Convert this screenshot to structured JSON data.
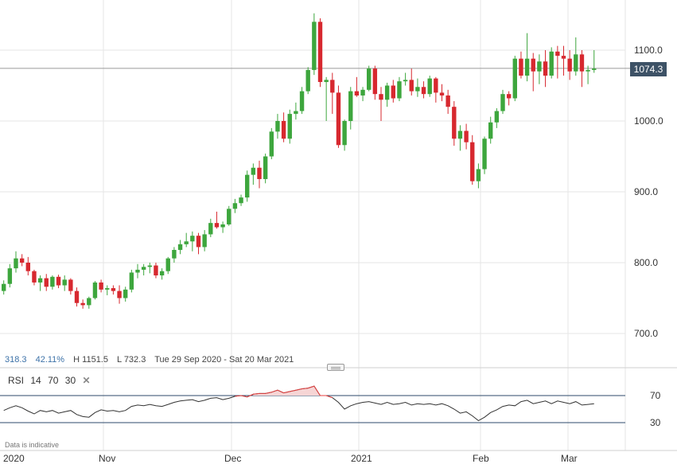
{
  "chart_data": {
    "type": "candlestick",
    "y_ticks": [
      "1100.0",
      "1000.0",
      "900.0",
      "800.0",
      "700.0"
    ],
    "y_tick_values": [
      1100,
      1000,
      900,
      800,
      700
    ],
    "ylim": [
      650,
      1170
    ],
    "x_labels": [
      "2020",
      "Nov",
      "Dec",
      "2021",
      "Feb",
      "Mar"
    ],
    "current_price": "1074.3",
    "current_value": 1074.3,
    "grid": true,
    "candles": [
      [
        760,
        775,
        755,
        770
      ],
      [
        770,
        798,
        765,
        792
      ],
      [
        792,
        816,
        786,
        806
      ],
      [
        806,
        812,
        795,
        800
      ],
      [
        800,
        808,
        782,
        788
      ],
      [
        788,
        790,
        768,
        772
      ],
      [
        772,
        782,
        760,
        778
      ],
      [
        778,
        784,
        760,
        766
      ],
      [
        766,
        782,
        762,
        780
      ],
      [
        780,
        783,
        764,
        768
      ],
      [
        768,
        782,
        760,
        776
      ],
      [
        776,
        778,
        755,
        760
      ],
      [
        760,
        765,
        738,
        743
      ],
      [
        743,
        748,
        735,
        740
      ],
      [
        740,
        752,
        735,
        750
      ],
      [
        750,
        774,
        748,
        772
      ],
      [
        772,
        776,
        758,
        762
      ],
      [
        762,
        768,
        754,
        764
      ],
      [
        764,
        768,
        755,
        760
      ],
      [
        760,
        768,
        742,
        750
      ],
      [
        750,
        766,
        745,
        762
      ],
      [
        762,
        790,
        758,
        786
      ],
      [
        786,
        798,
        778,
        790
      ],
      [
        790,
        798,
        782,
        794
      ],
      [
        794,
        800,
        785,
        796
      ],
      [
        796,
        800,
        778,
        782
      ],
      [
        782,
        792,
        776,
        788
      ],
      [
        788,
        808,
        784,
        806
      ],
      [
        806,
        822,
        800,
        818
      ],
      [
        818,
        832,
        812,
        826
      ],
      [
        826,
        842,
        822,
        830
      ],
      [
        830,
        844,
        816,
        838
      ],
      [
        838,
        842,
        812,
        822
      ],
      [
        822,
        846,
        816,
        840
      ],
      [
        840,
        862,
        836,
        856
      ],
      [
        856,
        872,
        848,
        850
      ],
      [
        850,
        858,
        842,
        854
      ],
      [
        854,
        880,
        852,
        876
      ],
      [
        876,
        890,
        870,
        884
      ],
      [
        884,
        896,
        880,
        892
      ],
      [
        892,
        930,
        886,
        924
      ],
      [
        924,
        940,
        910,
        934
      ],
      [
        934,
        944,
        905,
        918
      ],
      [
        918,
        954,
        912,
        950
      ],
      [
        950,
        990,
        946,
        985
      ],
      [
        985,
        1010,
        975,
        1000
      ],
      [
        1000,
        1012,
        970,
        975
      ],
      [
        975,
        1016,
        968,
        1010
      ],
      [
        1010,
        1026,
        1002,
        1014
      ],
      [
        1014,
        1048,
        1010,
        1042
      ],
      [
        1042,
        1076,
        1038,
        1072
      ],
      [
        1072,
        1152,
        1065,
        1140
      ],
      [
        1140,
        1145,
        1048,
        1055
      ],
      [
        1055,
        1062,
        1000,
        1058
      ],
      [
        1058,
        1068,
        1010,
        1040
      ],
      [
        1040,
        1050,
        962,
        966
      ],
      [
        966,
        1002,
        958,
        1000
      ],
      [
        1000,
        1048,
        988,
        1042
      ],
      [
        1042,
        1062,
        1034,
        1036
      ],
      [
        1036,
        1048,
        1028,
        1044
      ],
      [
        1044,
        1078,
        1042,
        1074
      ],
      [
        1074,
        1078,
        1030,
        1038
      ],
      [
        1038,
        1048,
        1000,
        1030
      ],
      [
        1030,
        1054,
        1020,
        1050
      ],
      [
        1050,
        1058,
        1026,
        1032
      ],
      [
        1032,
        1062,
        1028,
        1056
      ],
      [
        1056,
        1068,
        1050,
        1058
      ],
      [
        1058,
        1074,
        1036,
        1042
      ],
      [
        1042,
        1060,
        1034,
        1048
      ],
      [
        1048,
        1056,
        1032,
        1038
      ],
      [
        1038,
        1064,
        1034,
        1060
      ],
      [
        1060,
        1062,
        1026,
        1040
      ],
      [
        1040,
        1052,
        1028,
        1036
      ],
      [
        1036,
        1044,
        1010,
        1020
      ],
      [
        1020,
        1028,
        965,
        975
      ],
      [
        975,
        994,
        958,
        986
      ],
      [
        986,
        996,
        960,
        970
      ],
      [
        970,
        980,
        910,
        915
      ],
      [
        915,
        940,
        905,
        932
      ],
      [
        932,
        978,
        925,
        975
      ],
      [
        975,
        1006,
        968,
        998
      ],
      [
        998,
        1018,
        990,
        1014
      ],
      [
        1014,
        1044,
        1010,
        1038
      ],
      [
        1038,
        1042,
        1022,
        1032
      ],
      [
        1032,
        1092,
        1028,
        1088
      ],
      [
        1088,
        1098,
        1060,
        1064
      ],
      [
        1064,
        1124,
        1056,
        1088
      ],
      [
        1088,
        1096,
        1042,
        1070
      ],
      [
        1070,
        1094,
        1052,
        1084
      ],
      [
        1084,
        1100,
        1048,
        1064
      ],
      [
        1064,
        1104,
        1060,
        1098
      ],
      [
        1098,
        1106,
        1060,
        1092
      ],
      [
        1092,
        1106,
        1064,
        1088
      ],
      [
        1088,
        1100,
        1058,
        1070
      ],
      [
        1070,
        1118,
        1064,
        1094
      ],
      [
        1094,
        1100,
        1048,
        1070
      ],
      [
        1070,
        1078,
        1052,
        1072
      ],
      [
        1072,
        1100,
        1068,
        1074
      ]
    ],
    "rsi": {
      "label": "RSI",
      "period": "14",
      "upper": "70",
      "lower": "30",
      "upper_value": 70,
      "lower_value": 30,
      "axis_ticks": [
        "70",
        "30"
      ],
      "values": [
        48,
        52,
        55,
        52,
        47,
        43,
        48,
        46,
        48,
        44,
        46,
        48,
        42,
        39,
        38,
        45,
        49,
        47,
        48,
        46,
        48,
        54,
        56,
        55,
        57,
        55,
        54,
        57,
        60,
        62,
        63,
        64,
        61,
        63,
        66,
        67,
        64,
        66,
        69,
        70,
        68,
        72,
        73,
        73,
        75,
        78,
        74,
        76,
        78,
        80,
        81,
        84,
        70,
        70,
        67,
        60,
        50,
        55,
        58,
        60,
        61,
        59,
        57,
        60,
        57,
        58,
        60,
        56,
        58,
        57,
        58,
        56,
        58,
        55,
        50,
        44,
        46,
        40,
        33,
        38,
        45,
        49,
        54,
        56,
        55,
        61,
        63,
        58,
        60,
        62,
        58,
        62,
        60,
        58,
        61,
        56,
        57,
        58
      ]
    }
  },
  "info": {
    "change": "318.3",
    "change_pct": "42.11%",
    "high": "H 1151.5",
    "low": "L 732.3",
    "range": "Tue 29 Sep 2020 - Sat 20 Mar 2021"
  },
  "footer_note": "Data is indicative",
  "colors": {
    "up": "#3da63d",
    "down": "#d7282f",
    "rsi_line": "#333333",
    "rsi_overbought": "#e84040",
    "band_line": "#2c4a6b",
    "grid": "#e6e6e6",
    "price_tag": "#3d5266"
  },
  "icons": {
    "rsi_close": "close-icon",
    "splitter": "drag-handle-icon"
  }
}
